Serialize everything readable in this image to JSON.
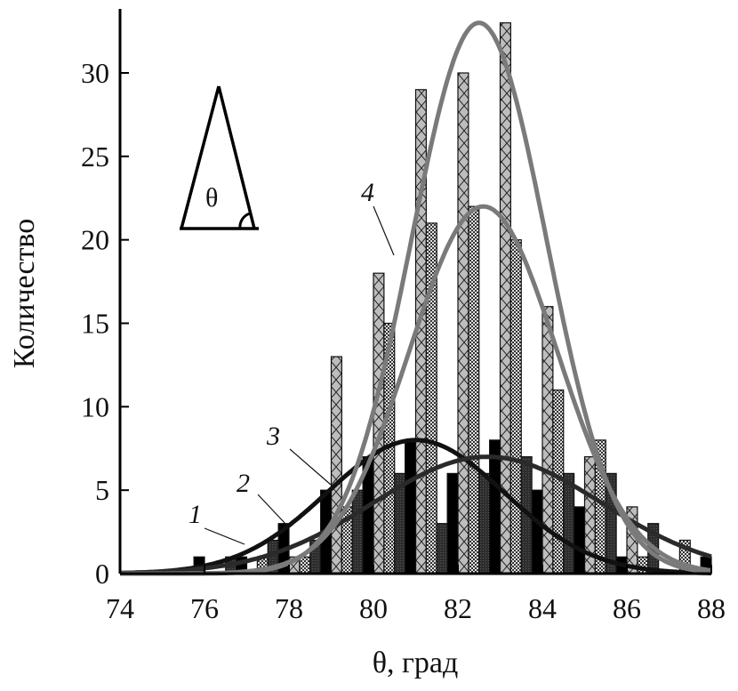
{
  "chart_data": {
    "type": "bar",
    "xlabel": "θ, град",
    "ylabel": "Количество",
    "xlim": [
      74,
      88
    ],
    "ylim": [
      0,
      33
    ],
    "x_ticks": [
      74,
      76,
      78,
      80,
      82,
      84,
      86,
      88
    ],
    "y_ticks": [
      0,
      5,
      10,
      15,
      20,
      25,
      30
    ],
    "bin_width": 0.25,
    "bin_start": [
      75,
      76,
      77,
      78,
      79,
      80,
      81,
      82,
      83,
      84,
      85,
      86,
      87
    ],
    "series": [
      {
        "name": "4",
        "style": "crosshatch",
        "offset": 0,
        "values": [
          0,
          0,
          0,
          1,
          13,
          18,
          29,
          30,
          33,
          16,
          7,
          4,
          0
        ]
      },
      {
        "name": "3",
        "style": "checker",
        "offset": 0.25,
        "values": [
          0,
          0,
          1,
          1,
          4,
          15,
          21,
          22,
          20,
          11,
          8,
          1,
          2
        ]
      },
      {
        "name": "2",
        "style": "dark",
        "offset": 0.5,
        "values": [
          0,
          1,
          2,
          2,
          5,
          6,
          3,
          6,
          7,
          6,
          6,
          3,
          0
        ]
      },
      {
        "name": "1",
        "style": "black",
        "offset": 0.75,
        "values": [
          1,
          1,
          3,
          5,
          7,
          8,
          6,
          8,
          5,
          4,
          1,
          0,
          1
        ]
      }
    ],
    "fit_curves": [
      {
        "label": "1",
        "type": "gaussian",
        "peak": 8,
        "mean": 81.0,
        "sigma": 2.1,
        "color": "#111111"
      },
      {
        "label": "2",
        "type": "gaussian",
        "peak": 7,
        "mean": 82.7,
        "sigma": 2.7,
        "color": "#2a2a2a"
      },
      {
        "label": "3",
        "type": "gaussian",
        "peak": 22,
        "mean": 82.6,
        "sigma": 1.75,
        "color": "#7a7a7a"
      },
      {
        "label": "4",
        "type": "gaussian",
        "peak": 33,
        "mean": 82.5,
        "sigma": 1.6,
        "color": "#7a7a7a"
      }
    ],
    "inset": {
      "angle_symbol": "θ"
    }
  }
}
